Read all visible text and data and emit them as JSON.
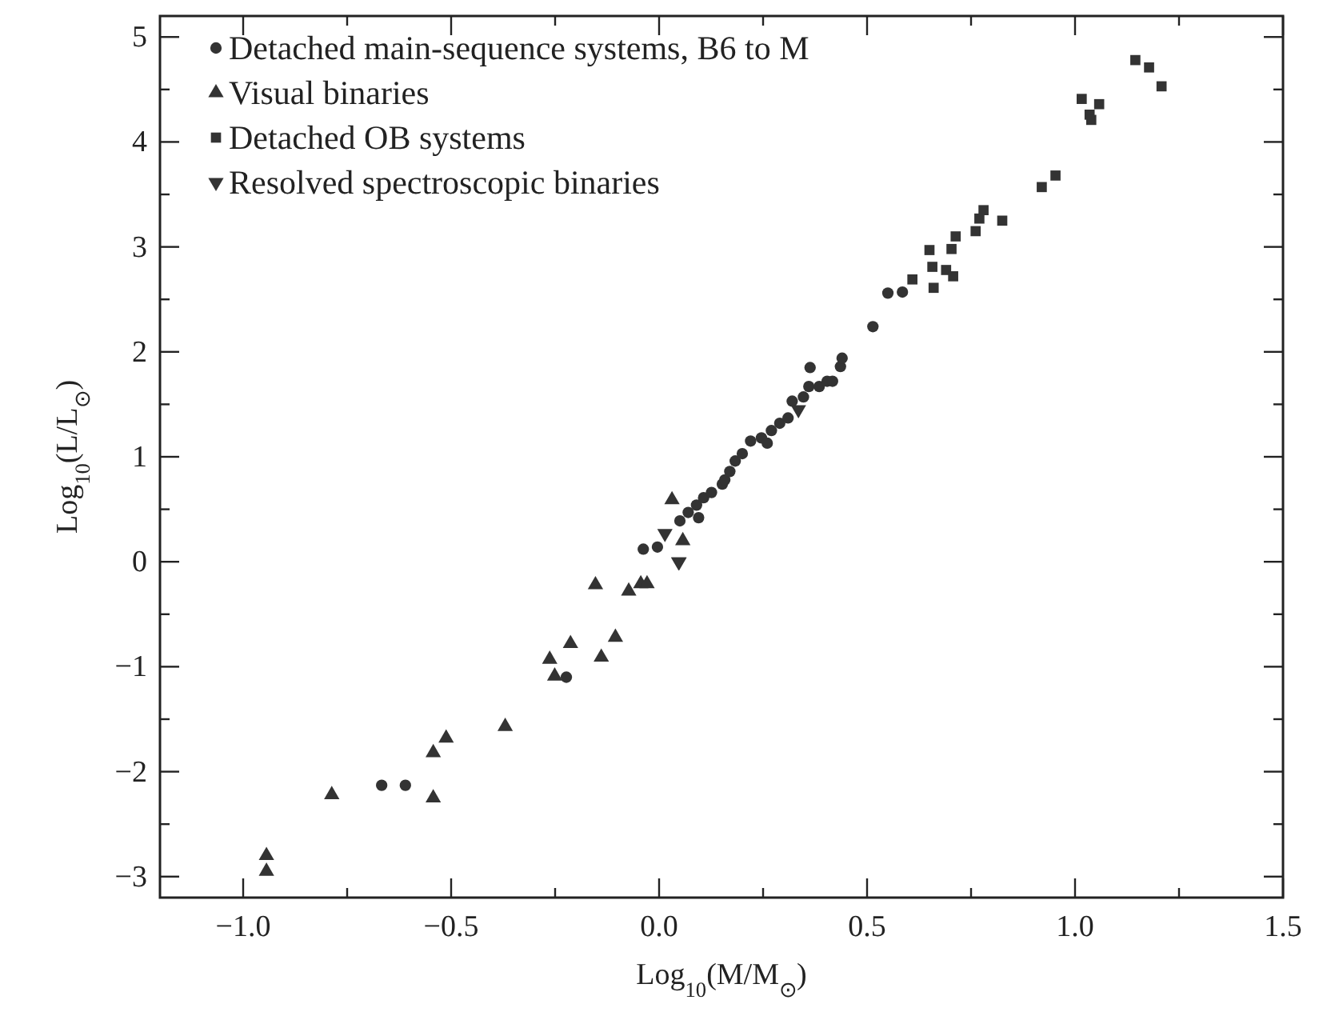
{
  "chart_data": {
    "type": "scatter",
    "xlabel": "Log$_{10}$(M/M$_{⊙}$)",
    "ylabel": "Log$_{10}$(L/L$_{⊙}$)",
    "xlim": [
      -1.2,
      1.5
    ],
    "ylim": [
      -3.2,
      5.2
    ],
    "xticks": [
      {
        "value": -1,
        "label": "−1.0"
      },
      {
        "value": -0.5,
        "label": "−0.5"
      },
      {
        "value": 0,
        "label": "0.0"
      },
      {
        "value": 0.5,
        "label": "0.5"
      },
      {
        "value": 1,
        "label": "1.0"
      },
      {
        "value": 1.5,
        "label": "1.5"
      }
    ],
    "yticks": [
      {
        "value": -3,
        "label": "−3"
      },
      {
        "value": -2,
        "label": "−2"
      },
      {
        "value": -1,
        "label": "−1"
      },
      0,
      1,
      2,
      3,
      4,
      5
    ],
    "grid": false,
    "legend": "top left",
    "series": [
      {
        "name": "Detached main-sequence systems, B6 to M",
        "color": "#333333",
        "marker": "circle",
        "x": [
          -0.667,
          -0.61,
          -0.223,
          -0.038,
          -0.004,
          0.05,
          0.07,
          0.09,
          0.095,
          0.107,
          0.126,
          0.152,
          0.158,
          0.17,
          0.183,
          0.2,
          0.22,
          0.246,
          0.26,
          0.27,
          0.29,
          0.31,
          0.32,
          0.347,
          0.36,
          0.363,
          0.385,
          0.404,
          0.417,
          0.436,
          0.44,
          0.514,
          0.55,
          0.585
        ],
        "values": [
          -2.13,
          -2.13,
          -1.1,
          0.12,
          0.14,
          0.39,
          0.47,
          0.54,
          0.42,
          0.61,
          0.66,
          0.74,
          0.78,
          0.86,
          0.96,
          1.03,
          1.15,
          1.18,
          1.13,
          1.25,
          1.32,
          1.37,
          1.53,
          1.57,
          1.67,
          1.85,
          1.67,
          1.72,
          1.72,
          1.86,
          1.94,
          2.24,
          2.56,
          2.57
        ]
      },
      {
        "name": "Visual binaries",
        "color": "#333333",
        "marker": "triangle",
        "x": [
          -0.944,
          -0.944,
          -0.787,
          -0.543,
          -0.543,
          -0.512,
          -0.37,
          -0.263,
          -0.251,
          -0.213,
          -0.139,
          -0.105,
          -0.153,
          -0.073,
          -0.044,
          -0.029,
          0.031,
          0.057
        ],
        "values": [
          -2.8,
          -2.95,
          -2.22,
          -2.25,
          -1.82,
          -1.68,
          -1.57,
          -0.93,
          -1.09,
          -0.78,
          -0.91,
          -0.72,
          -0.22,
          -0.28,
          -0.21,
          -0.21,
          0.59,
          0.2
        ]
      },
      {
        "name": "Detached OB systems",
        "color": "#333333",
        "marker": "square",
        "x": [
          0.609,
          0.65,
          0.657,
          0.66,
          0.69,
          0.707,
          0.703,
          0.713,
          0.761,
          0.77,
          0.78,
          0.825,
          0.92,
          0.953,
          1.016,
          1.035,
          1.039,
          1.058,
          1.145,
          1.178,
          1.208
        ],
        "values": [
          2.69,
          2.97,
          2.81,
          2.61,
          2.78,
          2.72,
          2.98,
          3.1,
          3.15,
          3.27,
          3.35,
          3.25,
          3.57,
          3.68,
          4.41,
          4.26,
          4.21,
          4.36,
          4.78,
          4.71,
          4.53
        ]
      },
      {
        "name": "Resolved spectroscopic binaries",
        "color": "#333333",
        "marker": "triangle",
        "x": [
          0.047,
          0.014,
          0.048,
          0.335
        ],
        "values": [
          0.0,
          0.27,
          0.0,
          1.45
        ]
      }
    ]
  }
}
